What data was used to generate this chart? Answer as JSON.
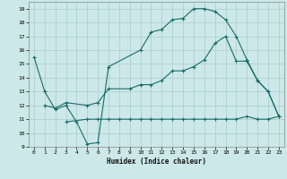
{
  "xlabel": "Humidex (Indice chaleur)",
  "xlim": [
    -0.5,
    23.5
  ],
  "ylim": [
    9,
    19.5
  ],
  "xticks": [
    0,
    1,
    2,
    3,
    4,
    5,
    6,
    7,
    8,
    9,
    10,
    11,
    12,
    13,
    14,
    15,
    16,
    17,
    18,
    19,
    20,
    21,
    22,
    23
  ],
  "yticks": [
    9,
    10,
    11,
    12,
    13,
    14,
    15,
    16,
    17,
    18,
    19
  ],
  "bg_color": "#cce8e8",
  "grid_color": "#aacccc",
  "line_color": "#1a6b6b",
  "line1_x": [
    0,
    1,
    2,
    3,
    4,
    5,
    6,
    7,
    10,
    11,
    12,
    13,
    14,
    15,
    16,
    17,
    18,
    19,
    20,
    21,
    22,
    23
  ],
  "line1_y": [
    15.5,
    13.0,
    11.7,
    12.0,
    10.8,
    9.2,
    9.3,
    14.8,
    16.0,
    17.3,
    17.5,
    18.2,
    18.3,
    19.0,
    19.0,
    18.8,
    18.2,
    17.0,
    15.3,
    13.8,
    13.0,
    11.2
  ],
  "line2_x": [
    1,
    2,
    3,
    5,
    6,
    7,
    9,
    10,
    11,
    12,
    13,
    14,
    15,
    16,
    17,
    18,
    19,
    20,
    21,
    22,
    23
  ],
  "line2_y": [
    12.0,
    11.8,
    12.2,
    12.0,
    12.2,
    13.2,
    13.2,
    13.5,
    13.5,
    13.8,
    14.5,
    14.5,
    14.8,
    15.3,
    16.5,
    17.0,
    15.2,
    15.2,
    13.8,
    13.0,
    11.2
  ],
  "line3_x": [
    3,
    5,
    6,
    7,
    8,
    9,
    10,
    11,
    12,
    13,
    14,
    15,
    16,
    17,
    18,
    19,
    20,
    21,
    22,
    23
  ],
  "line3_y": [
    10.8,
    11.0,
    11.0,
    11.0,
    11.0,
    11.0,
    11.0,
    11.0,
    11.0,
    11.0,
    11.0,
    11.0,
    11.0,
    11.0,
    11.0,
    11.0,
    11.2,
    11.0,
    11.0,
    11.2
  ]
}
